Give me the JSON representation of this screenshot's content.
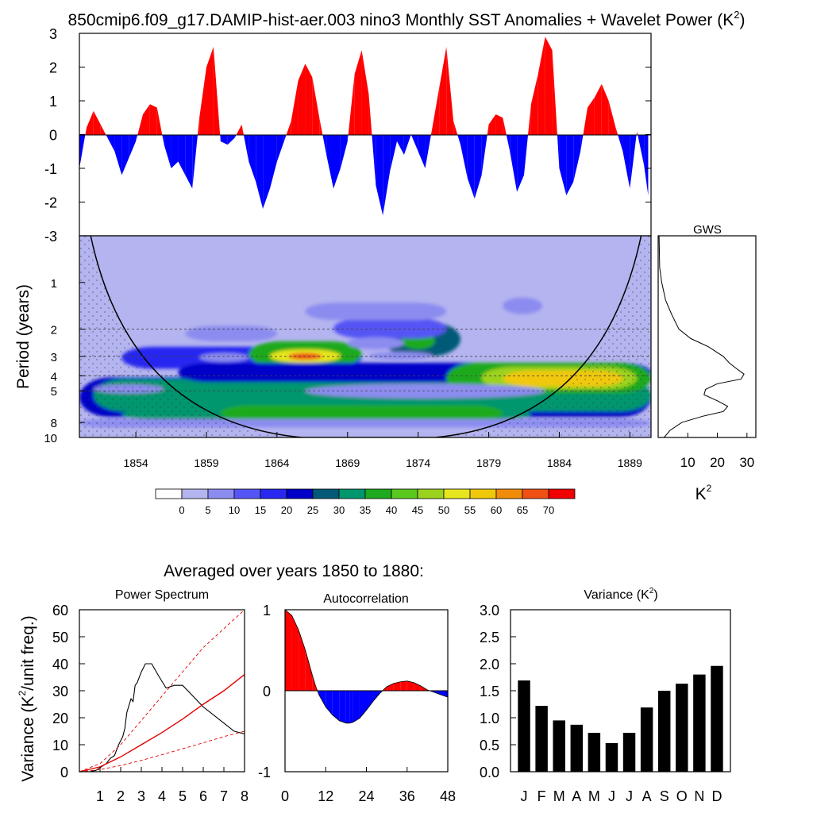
{
  "figure": {
    "title": "850cmip6.f09_g17.DAMIP-hist-aer.003 nino3 Monthly SST Anomalies + Wavelet Power (K",
    "title_sup": "2",
    "title_tail": ")"
  },
  "chart_data": [
    {
      "id": "sst_anomaly",
      "type": "area",
      "title": "",
      "xlabel": "",
      "ylabel": "",
      "xlim": [
        1850,
        1890.5
      ],
      "ylim": [
        -3,
        3
      ],
      "y_ticks": [
        "3",
        "2",
        "1",
        "0",
        "-1",
        "-2",
        "-3"
      ],
      "positive_color": "#ff0000",
      "negative_color": "#0000ff",
      "x": [
        1850.0,
        1850.5,
        1851.0,
        1851.5,
        1852.0,
        1852.5,
        1853.0,
        1853.5,
        1854.0,
        1854.5,
        1855.0,
        1855.5,
        1856.0,
        1856.5,
        1857.0,
        1857.5,
        1858.0,
        1858.5,
        1859.0,
        1859.5,
        1860.0,
        1860.5,
        1861.0,
        1861.5,
        1862.0,
        1862.5,
        1863.0,
        1863.5,
        1864.0,
        1864.5,
        1865.0,
        1865.5,
        1866.0,
        1866.5,
        1867.0,
        1867.5,
        1868.0,
        1868.5,
        1869.0,
        1869.5,
        1870.0,
        1870.5,
        1871.0,
        1871.5,
        1872.0,
        1872.5,
        1873.0,
        1873.5,
        1874.0,
        1874.5,
        1875.0,
        1875.5,
        1876.0,
        1876.5,
        1877.0,
        1877.5,
        1878.0,
        1878.5,
        1879.0,
        1879.5,
        1880.0,
        1880.5,
        1881.0,
        1881.5,
        1882.0,
        1882.5,
        1883.0,
        1883.5,
        1884.0,
        1884.5,
        1885.0,
        1885.5,
        1886.0,
        1886.5,
        1887.0,
        1887.5,
        1888.0,
        1888.5,
        1889.0,
        1889.5,
        1890.0,
        1890.3
      ],
      "values": [
        -1.0,
        0.2,
        0.7,
        0.3,
        -0.1,
        -0.5,
        -1.2,
        -0.7,
        -0.2,
        0.6,
        0.9,
        0.8,
        -0.3,
        -1.0,
        -0.8,
        -1.2,
        -1.6,
        0.5,
        2.0,
        2.6,
        -0.2,
        -0.3,
        -0.1,
        0.3,
        -0.8,
        -1.4,
        -2.2,
        -1.6,
        -0.8,
        -0.2,
        0.4,
        1.6,
        2.1,
        1.7,
        0.5,
        -0.6,
        -1.6,
        -1.0,
        -0.2,
        1.8,
        2.5,
        1.2,
        -1.5,
        -2.4,
        -1.1,
        -0.2,
        -0.6,
        0.0,
        -0.5,
        -1.0,
        0.2,
        1.4,
        2.6,
        0.4,
        -0.3,
        -1.3,
        -1.9,
        -1.2,
        0.3,
        0.6,
        0.5,
        -0.5,
        -1.7,
        -1.2,
        0.9,
        1.8,
        2.9,
        2.5,
        -1.0,
        -1.8,
        -1.4,
        -0.5,
        0.8,
        1.1,
        1.5,
        1.0,
        0.2,
        -0.5,
        -1.6,
        0.1,
        -0.9,
        -1.8
      ],
      "x_ticks": [
        1854,
        1859,
        1864,
        1869,
        1874,
        1879,
        1884,
        1889
      ]
    },
    {
      "id": "wavelet_power",
      "type": "heatmap",
      "title": "",
      "xlabel": "",
      "ylabel": "Period (years)",
      "x_range": [
        1850,
        1890.5
      ],
      "y_scale": "log",
      "y_range": [
        0.5,
        10
      ],
      "y_ticks": [
        1,
        2,
        3,
        4,
        5,
        8,
        10
      ],
      "x_ticks": [
        1854,
        1859,
        1864,
        1869,
        1874,
        1879,
        1884,
        1889
      ],
      "reference_periods": [
        2,
        3,
        4,
        5
      ],
      "contour_levels": [
        0,
        5,
        10,
        15,
        20,
        25,
        30,
        35,
        40,
        45,
        50,
        55,
        60,
        65,
        70
      ],
      "palette": [
        "#ffffff",
        "#b4b4f0",
        "#8c8cf0",
        "#5555f5",
        "#2828f0",
        "#0000c8",
        "#005a78",
        "#00966e",
        "#1eaa1e",
        "#5ac81e",
        "#9bd21e",
        "#e6e61e",
        "#f0c80a",
        "#f08c0a",
        "#f05014",
        "#f00000"
      ],
      "maxima": [
        {
          "x": 1866.0,
          "period": 3.0,
          "power": 72
        },
        {
          "x": 1884.5,
          "period": 4.2,
          "power": 58
        },
        {
          "x": 1881.0,
          "period": 3.8,
          "power": 52
        },
        {
          "x": 1874.0,
          "period": 2.4,
          "power": 38
        },
        {
          "x": 1866.0,
          "period": 6.5,
          "power": 30
        },
        {
          "x": 1853.5,
          "period": 4.8,
          "power": 28
        }
      ],
      "cone_of_influence": true
    },
    {
      "id": "gws",
      "type": "line",
      "title": "GWS",
      "xlabel": "K",
      "xlabel_sup": "2",
      "x_ticks": [
        10,
        20,
        30
      ],
      "xlim": [
        0,
        33
      ],
      "periods": [
        0.5,
        0.8,
        1.0,
        1.3,
        1.6,
        2.0,
        2.3,
        2.6,
        3.0,
        3.3,
        3.6,
        3.9,
        4.2,
        4.5,
        4.9,
        5.3,
        5.8,
        6.3,
        6.8,
        7.3,
        8.0,
        9.0,
        10.0
      ],
      "values": [
        0.3,
        0.5,
        1.2,
        2.5,
        4.5,
        7.0,
        11.0,
        17.0,
        22.0,
        24.0,
        26.5,
        29.0,
        28.0,
        20.0,
        16.0,
        15.5,
        20.0,
        23.5,
        22.0,
        15.0,
        8.0,
        4.0,
        2.0
      ]
    },
    {
      "id": "power_spectrum",
      "type": "line",
      "title": "Power Spectrum",
      "ylabel": "Variance (K",
      "ylabel_sup": "2",
      "ylabel_tail": "/unit freq.)",
      "xlim": [
        0,
        8
      ],
      "ylim": [
        0,
        60
      ],
      "x_ticks": [
        1,
        2,
        3,
        4,
        5,
        6,
        7,
        8
      ],
      "y_ticks": [
        0,
        10,
        20,
        30,
        40,
        50,
        60
      ],
      "series": [
        {
          "style": "black",
          "x": [
            0.5,
            0.8,
            1.0,
            1.3,
            1.5,
            1.7,
            1.9,
            2.1,
            2.2,
            2.3,
            2.5,
            2.6,
            2.7,
            2.8,
            3.0,
            3.2,
            3.5,
            3.8,
            4.2,
            4.6,
            5.0,
            5.5,
            6.0,
            6.5,
            7.0,
            7.5,
            8.0
          ],
          "y": [
            0,
            0.5,
            1.5,
            3,
            5,
            6,
            10,
            13,
            16,
            22,
            27,
            26,
            32,
            33,
            37,
            40,
            40,
            36,
            31,
            32,
            32,
            28,
            24,
            21,
            18,
            15,
            14
          ]
        },
        {
          "style": "red-solid",
          "x": [
            0,
            1,
            2,
            3,
            4,
            5,
            6,
            7,
            8
          ],
          "y": [
            0,
            1.8,
            5.5,
            10,
            14.5,
            19.5,
            25,
            30,
            36
          ]
        },
        {
          "style": "red-dashed-upper",
          "x": [
            0,
            1,
            2,
            3,
            4,
            5,
            6,
            7,
            8
          ],
          "y": [
            0,
            3,
            10,
            19,
            28,
            37,
            46,
            53,
            60
          ]
        },
        {
          "style": "red-dashed-lower",
          "x": [
            0,
            1,
            2,
            3,
            4,
            5,
            6,
            7,
            8
          ],
          "y": [
            0,
            0.8,
            2.3,
            4.2,
            6.3,
            8.5,
            10.7,
            13,
            15
          ]
        }
      ]
    },
    {
      "id": "autocorrelation",
      "type": "area",
      "title": "Autocorrelation",
      "xlim": [
        0,
        48
      ],
      "ylim": [
        -1,
        1
      ],
      "x_ticks": [
        0,
        12,
        24,
        36,
        48
      ],
      "y_tick_labels": [
        "1",
        "0",
        "-1"
      ],
      "positive_color": "#ff0000",
      "negative_color": "#0000ff",
      "lags": [
        0,
        2,
        4,
        6,
        8,
        9,
        10,
        12,
        14,
        16,
        18,
        19,
        20,
        22,
        24,
        26,
        28,
        30,
        31,
        32,
        34,
        36,
        38,
        40,
        42,
        44,
        46,
        48
      ],
      "values": [
        1.0,
        0.93,
        0.75,
        0.5,
        0.2,
        0.06,
        -0.05,
        -0.2,
        -0.3,
        -0.37,
        -0.4,
        -0.4,
        -0.39,
        -0.34,
        -0.24,
        -0.13,
        -0.03,
        0.05,
        0.07,
        0.09,
        0.11,
        0.12,
        0.1,
        0.06,
        0.01,
        -0.02,
        -0.05,
        -0.08
      ]
    },
    {
      "id": "monthly_variance",
      "type": "bar",
      "title": "Variance (K",
      "title_sup": "2",
      "title_tail": ")",
      "categories": [
        "J",
        "F",
        "M",
        "A",
        "M",
        "J",
        "J",
        "A",
        "S",
        "O",
        "N",
        "D"
      ],
      "values": [
        1.69,
        1.22,
        0.95,
        0.87,
        0.72,
        0.53,
        0.72,
        1.19,
        1.5,
        1.63,
        1.8,
        1.96
      ],
      "ylim": [
        0,
        3
      ],
      "y_ticks": [
        "0.0",
        "0.5",
        "1.0",
        "1.5",
        "2.0",
        "2.5",
        "3.0"
      ]
    }
  ],
  "subtitle": "Averaged over years 1850 to 1880:"
}
